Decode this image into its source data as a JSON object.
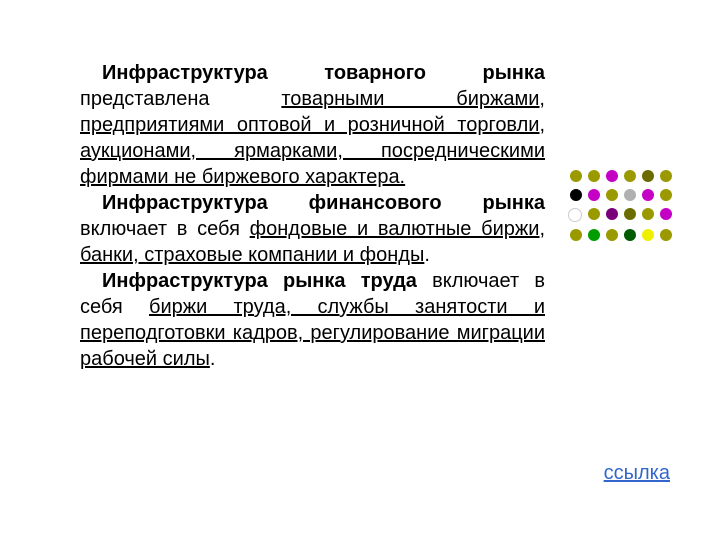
{
  "paragraphs": {
    "p1": {
      "lead": "Инфраструктура товарного рынка",
      "rest_a": " представлена ",
      "u1": "товарными биржами, предприятиями оптовой и розничной торговли, аукционами, ярмарками, посредническими фирмами не биржевого характера."
    },
    "p2": {
      "lead": "Инфраструктура финансового рынка",
      "rest_a": " включает в себя ",
      "u1": "фондовые и валютные биржи, банки, страховые компании и фонды",
      "tail": "."
    },
    "p3": {
      "lead": "Инфраструктура рынка труда",
      "rest_a": " включает в себя ",
      "u1": "биржи труда, службы занятости и переподготовки кадров, регулирование миграции рабочей силы",
      "tail": "."
    }
  },
  "link_label": "ссылка",
  "colors": {
    "text": "#000000",
    "link": "#3366cc",
    "background": "#ffffff"
  },
  "fontsize_body": 20,
  "dots_palette": {
    "olive": "#9a9a00",
    "olive_d": "#6b6b00",
    "fuchsia": "#c400c4",
    "fuchsia_d": "#7a007a",
    "black": "#000000",
    "gray": "#b0b0b0",
    "white": "#ffffff",
    "green": "#009c00",
    "green_d": "#005a00",
    "yellow": "#efef00"
  },
  "dots_grid": [
    [
      "olive",
      "olive",
      "fuchsia",
      "olive",
      "olive_d",
      "olive"
    ],
    [
      "black",
      "fuchsia",
      "olive",
      "gray",
      "fuchsia",
      "olive"
    ],
    [
      "white",
      "olive",
      "fuchsia_d",
      "olive_d",
      "olive",
      "fuchsia"
    ],
    [
      "olive",
      "green",
      "olive",
      "green_d",
      "yellow",
      "olive"
    ]
  ]
}
